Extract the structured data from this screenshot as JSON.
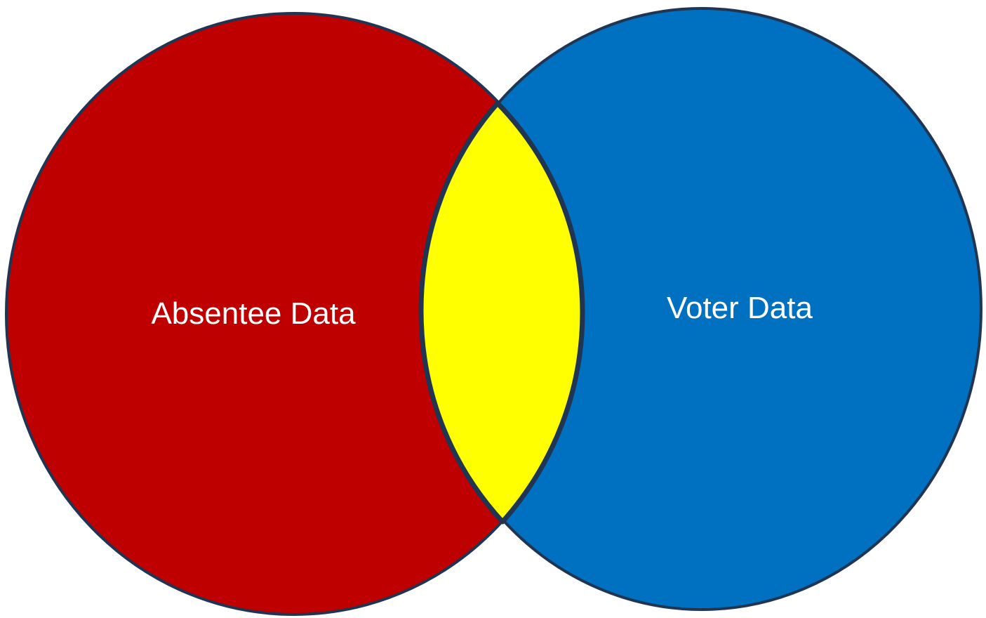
{
  "diagram": {
    "sets": [
      {
        "label": "Absentee Data",
        "fill_color": "#BF0000"
      },
      {
        "label": "Voter Data",
        "fill_color": "#0070C0"
      }
    ],
    "overlap": {
      "fill_color": "#FFFF00"
    },
    "outline_color": "#1F3552"
  }
}
